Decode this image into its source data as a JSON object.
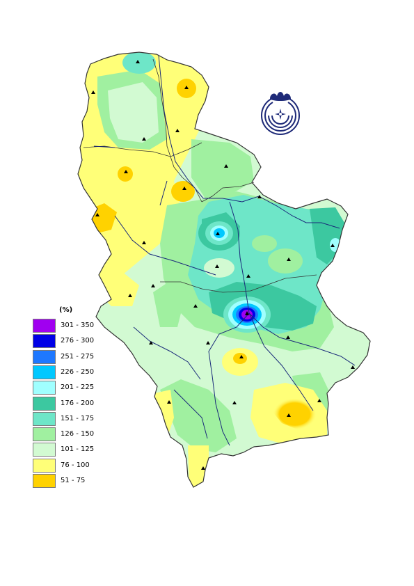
{
  "legend": {
    "unit": "(%)",
    "classes": [
      {
        "label": "301 - 350",
        "color": "#a000f0"
      },
      {
        "label": "276 - 300",
        "color": "#0000e6"
      },
      {
        "label": "251 - 275",
        "color": "#1e78ff"
      },
      {
        "label": "226 - 250",
        "color": "#00c8ff"
      },
      {
        "label": "201 - 225",
        "color": "#a0ffff"
      },
      {
        "label": "176 - 200",
        "color": "#3cc8a0"
      },
      {
        "label": "151 - 175",
        "color": "#6ee6c8"
      },
      {
        "label": "126 - 150",
        "color": "#a0f0a0"
      },
      {
        "label": "101 - 125",
        "color": "#d2fad2"
      },
      {
        "label": "76 - 100",
        "color": "#ffff78"
      },
      {
        "label": "51 - 75",
        "color": "#ffd200"
      }
    ]
  },
  "colors": {
    "border": "#333333",
    "river": "#1a2a7a",
    "station": "#000000",
    "emblem": "#1e2a78"
  }
}
